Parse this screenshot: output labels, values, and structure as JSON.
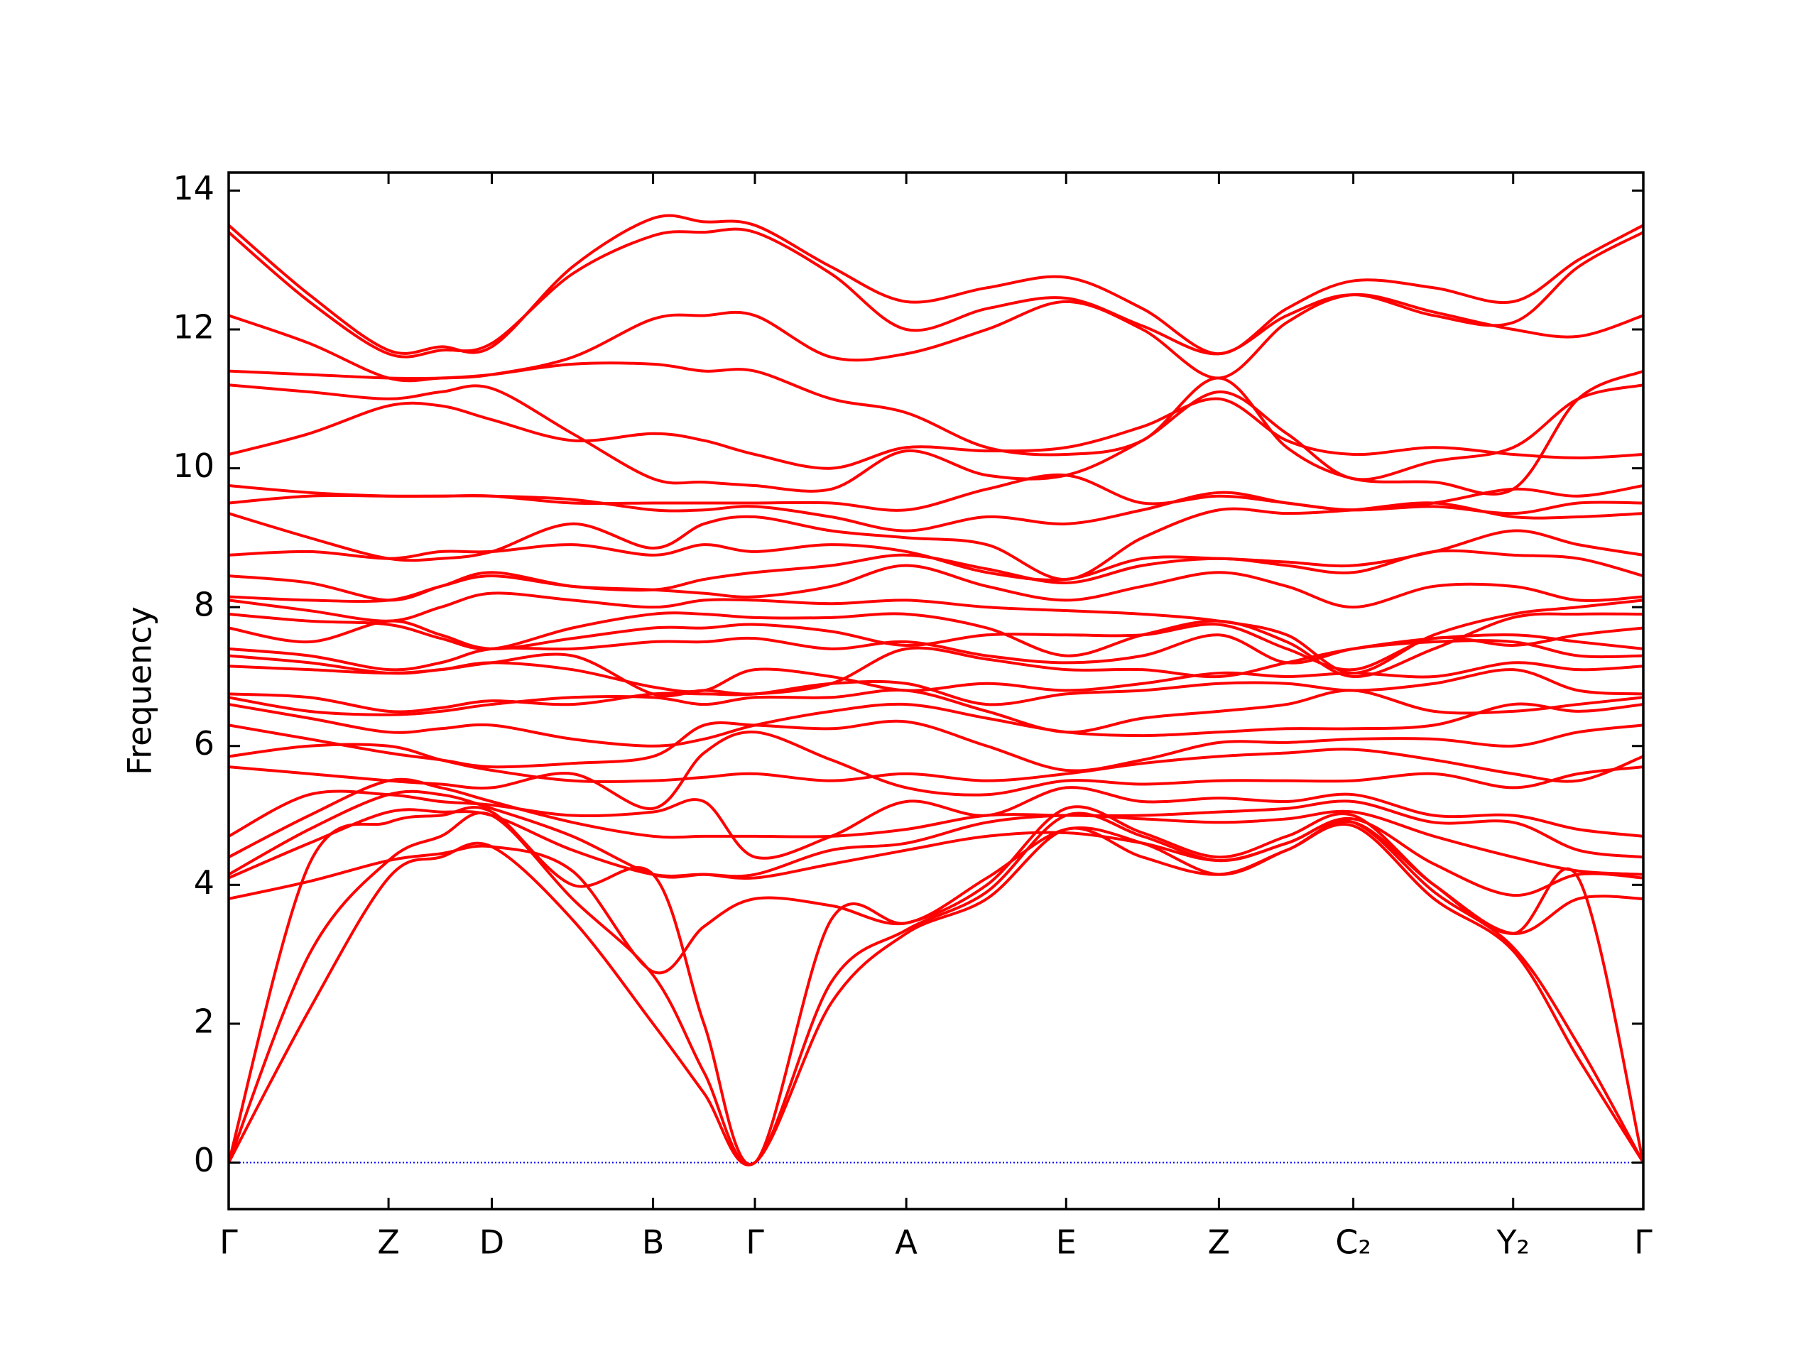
{
  "chart_data": {
    "type": "line",
    "ylabel": "Frequency",
    "color": "#ff0000",
    "hline": 0,
    "hline_color": "#0000ff",
    "xlim": [
      0,
      1
    ],
    "ylim": [
      -0.67,
      14.26
    ],
    "xticks": [
      {
        "value": 0,
        "label": "Γ"
      },
      {
        "value": 0.113,
        "label": "Z"
      },
      {
        "value": 0.186,
        "label": "D"
      },
      {
        "value": 0.3,
        "label": "B"
      },
      {
        "value": 0.372,
        "label": "Γ"
      },
      {
        "value": 0.479,
        "label": "A"
      },
      {
        "value": 0.592,
        "label": "E"
      },
      {
        "value": 0.7,
        "label": "Z"
      },
      {
        "value": 0.795,
        "label": "C₂"
      },
      {
        "value": 0.908,
        "label": "Y₂"
      },
      {
        "value": 1,
        "label": "Γ"
      }
    ],
    "yticks": [
      0,
      2,
      4,
      6,
      8,
      10,
      12,
      14
    ],
    "x": [
      0,
      0.057,
      0.113,
      0.15,
      0.186,
      0.243,
      0.3,
      0.336,
      0.372,
      0.426,
      0.479,
      0.536,
      0.592,
      0.646,
      0.7,
      0.748,
      0.795,
      0.852,
      0.908,
      0.954,
      1
    ],
    "series": [
      {
        "values": [
          0,
          2.2,
          4.1,
          4.4,
          4.55,
          3.5,
          2.0,
          1.0,
          0,
          2.3,
          3.3,
          3.8,
          4.8,
          4.4,
          4.15,
          4.5,
          4.85,
          3.8,
          3.05,
          1.5,
          0
        ]
      },
      {
        "values": [
          0,
          3.0,
          4.35,
          4.7,
          5.0,
          3.8,
          2.7,
          1.3,
          0,
          2.6,
          3.35,
          3.9,
          5.0,
          4.7,
          4.35,
          4.6,
          4.9,
          3.9,
          3.1,
          1.7,
          0
        ]
      },
      {
        "values": [
          0,
          4.3,
          4.9,
          5.0,
          5.05,
          4.0,
          4.15,
          2.0,
          0,
          3.5,
          3.45,
          4.0,
          5.1,
          4.75,
          4.4,
          4.7,
          5.0,
          4.0,
          3.3,
          4.1,
          0
        ]
      },
      {
        "values": [
          3.8,
          4.05,
          4.35,
          4.45,
          4.55,
          4.2,
          2.75,
          3.4,
          3.8,
          3.7,
          3.45,
          4.1,
          4.8,
          4.6,
          4.15,
          4.5,
          4.9,
          4.0,
          3.3,
          3.8,
          3.8
        ]
      },
      {
        "values": [
          4.1,
          4.6,
          5.05,
          5.05,
          5.0,
          4.5,
          4.15,
          4.15,
          4.1,
          4.3,
          4.5,
          4.7,
          4.75,
          4.6,
          4.35,
          4.6,
          4.95,
          4.3,
          3.85,
          4.15,
          4.1
        ]
      },
      {
        "values": [
          4.15,
          4.8,
          5.3,
          5.3,
          5.1,
          4.7,
          4.15,
          4.15,
          4.15,
          4.5,
          4.6,
          4.9,
          5.0,
          4.95,
          4.9,
          4.95,
          5.05,
          4.7,
          4.4,
          4.2,
          4.15
        ]
      },
      {
        "values": [
          4.4,
          5.0,
          5.5,
          5.4,
          5.2,
          4.9,
          4.7,
          4.7,
          4.7,
          4.7,
          4.8,
          5.0,
          5.0,
          5.0,
          5.05,
          5.1,
          5.2,
          4.9,
          4.9,
          4.5,
          4.4
        ]
      },
      {
        "values": [
          4.7,
          5.3,
          5.3,
          5.2,
          5.15,
          5.0,
          5.05,
          5.2,
          4.4,
          4.7,
          5.2,
          5.0,
          5.4,
          5.2,
          5.25,
          5.2,
          5.3,
          5.0,
          5.0,
          4.8,
          4.7
        ]
      },
      {
        "values": [
          5.7,
          5.6,
          5.5,
          5.45,
          5.4,
          5.6,
          5.1,
          5.9,
          6.2,
          5.8,
          5.4,
          5.3,
          5.5,
          5.45,
          5.5,
          5.5,
          5.5,
          5.6,
          5.4,
          5.6,
          5.7
        ]
      },
      {
        "values": [
          5.85,
          6.0,
          6.0,
          5.8,
          5.65,
          5.5,
          5.5,
          5.55,
          5.6,
          5.5,
          5.6,
          5.5,
          5.6,
          5.75,
          5.85,
          5.9,
          5.95,
          5.8,
          5.6,
          5.5,
          5.85
        ]
      },
      {
        "values": [
          6.3,
          6.1,
          5.9,
          5.8,
          5.7,
          5.75,
          5.85,
          6.3,
          6.3,
          6.25,
          6.35,
          6.0,
          5.65,
          5.8,
          6.05,
          6.05,
          6.1,
          6.1,
          6.0,
          6.2,
          6.3
        ]
      },
      {
        "values": [
          6.6,
          6.4,
          6.2,
          6.25,
          6.3,
          6.1,
          6.0,
          6.1,
          6.3,
          6.5,
          6.6,
          6.4,
          6.2,
          6.15,
          6.2,
          6.25,
          6.25,
          6.3,
          6.6,
          6.5,
          6.6
        ]
      },
      {
        "values": [
          6.7,
          6.5,
          6.45,
          6.5,
          6.6,
          6.7,
          6.7,
          6.6,
          6.7,
          6.7,
          6.8,
          6.5,
          6.2,
          6.4,
          6.5,
          6.6,
          6.8,
          6.5,
          6.5,
          6.6,
          6.7
        ]
      },
      {
        "values": [
          6.75,
          6.7,
          6.5,
          6.55,
          6.65,
          6.6,
          6.75,
          6.75,
          6.75,
          6.9,
          6.9,
          6.6,
          6.75,
          6.8,
          6.9,
          6.9,
          6.8,
          6.9,
          7.1,
          6.8,
          6.75
        ]
      },
      {
        "values": [
          7.15,
          7.1,
          7.05,
          7.1,
          7.2,
          7.1,
          6.85,
          6.8,
          7.1,
          7.0,
          6.8,
          6.9,
          6.8,
          6.9,
          7.05,
          7.0,
          7.05,
          7.0,
          7.2,
          7.1,
          7.15
        ]
      },
      {
        "values": [
          7.3,
          7.2,
          7.05,
          7.1,
          7.2,
          7.3,
          6.75,
          6.8,
          6.75,
          6.9,
          7.4,
          7.25,
          7.1,
          7.1,
          7.0,
          7.2,
          7.4,
          7.5,
          7.5,
          7.3,
          7.3
        ]
      },
      {
        "values": [
          7.4,
          7.3,
          7.1,
          7.2,
          7.4,
          7.4,
          7.5,
          7.5,
          7.55,
          7.4,
          7.5,
          7.3,
          7.2,
          7.3,
          7.6,
          7.2,
          7.4,
          7.55,
          7.6,
          7.5,
          7.4
        ]
      },
      {
        "values": [
          7.7,
          7.5,
          7.8,
          7.6,
          7.4,
          7.55,
          7.7,
          7.7,
          7.75,
          7.65,
          7.45,
          7.6,
          7.6,
          7.6,
          7.75,
          7.4,
          7.1,
          7.55,
          7.45,
          7.6,
          7.7
        ]
      },
      {
        "values": [
          7.9,
          7.8,
          7.75,
          7.55,
          7.4,
          7.7,
          7.9,
          7.9,
          7.85,
          7.85,
          7.9,
          7.7,
          7.3,
          7.6,
          7.8,
          7.5,
          7.0,
          7.4,
          7.85,
          7.9,
          7.9
        ]
      },
      {
        "values": [
          8.1,
          7.95,
          7.8,
          8.0,
          8.2,
          8.1,
          8.0,
          8.1,
          8.1,
          8.05,
          8.1,
          8.0,
          7.95,
          7.9,
          7.8,
          7.6,
          7.05,
          7.6,
          7.9,
          8.0,
          8.1
        ]
      },
      {
        "values": [
          8.15,
          8.1,
          8.1,
          8.3,
          8.45,
          8.3,
          8.25,
          8.2,
          8.15,
          8.3,
          8.6,
          8.3,
          8.1,
          8.3,
          8.5,
          8.3,
          8.0,
          8.3,
          8.3,
          8.1,
          8.15
        ]
      },
      {
        "values": [
          8.45,
          8.35,
          8.1,
          8.3,
          8.5,
          8.3,
          8.25,
          8.4,
          8.5,
          8.6,
          8.75,
          8.55,
          8.35,
          8.6,
          8.7,
          8.6,
          8.5,
          8.8,
          8.75,
          8.7,
          8.45
        ]
      },
      {
        "values": [
          8.75,
          8.8,
          8.7,
          8.8,
          8.8,
          8.9,
          8.75,
          8.9,
          8.8,
          8.9,
          8.8,
          8.5,
          8.4,
          8.7,
          8.7,
          8.65,
          8.6,
          8.8,
          9.1,
          8.9,
          8.75
        ]
      },
      {
        "values": [
          9.35,
          9.0,
          8.7,
          8.7,
          8.8,
          9.2,
          8.85,
          9.2,
          9.3,
          9.1,
          9.0,
          8.9,
          8.4,
          9.0,
          9.4,
          9.35,
          9.4,
          9.5,
          9.3,
          9.3,
          9.35
        ]
      },
      {
        "values": [
          9.5,
          9.6,
          9.6,
          9.6,
          9.6,
          9.55,
          9.4,
          9.4,
          9.45,
          9.3,
          9.1,
          9.3,
          9.2,
          9.4,
          9.65,
          9.5,
          9.4,
          9.45,
          9.35,
          9.5,
          9.5
        ]
      },
      {
        "values": [
          9.75,
          9.65,
          9.6,
          9.6,
          9.6,
          9.5,
          9.5,
          9.5,
          9.5,
          9.5,
          9.4,
          9.7,
          9.9,
          9.5,
          9.6,
          9.5,
          9.4,
          9.5,
          9.7,
          9.6,
          9.75
        ]
      },
      {
        "values": [
          10.2,
          10.5,
          10.9,
          10.9,
          10.7,
          10.4,
          10.5,
          10.4,
          10.2,
          10.0,
          10.3,
          10.25,
          10.3,
          10.6,
          11.0,
          10.4,
          10.2,
          10.3,
          10.2,
          10.15,
          10.2
        ]
      },
      {
        "values": [
          11.2,
          11.1,
          11.0,
          11.1,
          11.15,
          10.5,
          9.85,
          9.8,
          9.75,
          9.7,
          10.25,
          9.9,
          9.9,
          10.4,
          11.1,
          10.5,
          9.85,
          10.1,
          10.3,
          11.0,
          11.2
        ]
      },
      {
        "values": [
          11.4,
          11.35,
          11.3,
          11.3,
          11.35,
          11.5,
          11.5,
          11.4,
          11.4,
          11.0,
          10.8,
          10.3,
          10.2,
          10.4,
          11.3,
          10.3,
          9.85,
          9.8,
          9.7,
          11.0,
          11.4
        ]
      },
      {
        "values": [
          12.2,
          11.8,
          11.3,
          11.3,
          11.35,
          11.6,
          12.15,
          12.2,
          12.2,
          11.6,
          11.65,
          12.0,
          12.4,
          12.0,
          11.3,
          12.1,
          12.5,
          12.25,
          12.0,
          11.9,
          12.2
        ]
      },
      {
        "values": [
          13.4,
          12.4,
          11.65,
          11.7,
          11.8,
          12.8,
          13.35,
          13.4,
          13.4,
          12.8,
          12.0,
          12.3,
          12.45,
          12.05,
          11.65,
          12.2,
          12.5,
          12.2,
          12.1,
          12.9,
          13.4
        ]
      },
      {
        "values": [
          13.5,
          12.5,
          11.7,
          11.75,
          11.75,
          12.9,
          13.6,
          13.55,
          13.5,
          12.9,
          12.4,
          12.6,
          12.75,
          12.3,
          11.65,
          12.3,
          12.7,
          12.6,
          12.4,
          13.0,
          13.5
        ]
      }
    ]
  }
}
